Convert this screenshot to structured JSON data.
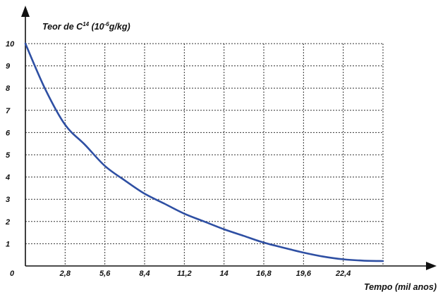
{
  "chart_data": {
    "type": "line",
    "ylabel": {
      "prefix": "Teor de C",
      "sup1": "14",
      "mid": " (10",
      "sup2": "-6",
      "suffix": "g/kg)"
    },
    "xlabel": "Tempo (mil anos)",
    "origin_label": "0",
    "x_ticks": [
      "2,8",
      "5,6",
      "8,4",
      "11,2",
      "14",
      "16,8",
      "19,6",
      "22,4"
    ],
    "y_ticks": [
      "1",
      "2",
      "3",
      "4",
      "5",
      "6",
      "7",
      "8",
      "9",
      "10"
    ],
    "xlim": [
      0,
      25.2
    ],
    "ylim": [
      0,
      10
    ],
    "grid": true,
    "series": [
      {
        "color": "#2e4fa3",
        "x": [
          0,
          1.4,
          2.8,
          4.2,
          5.6,
          7,
          8.4,
          9.8,
          11.2,
          12.6,
          14,
          15.4,
          16.8,
          18.2,
          19.6,
          21,
          22.4,
          23.8,
          25.2
        ],
        "values": [
          10,
          7.95,
          6.35,
          5.45,
          4.5,
          3.85,
          3.25,
          2.8,
          2.35,
          2.0,
          1.65,
          1.35,
          1.05,
          0.82,
          0.6,
          0.42,
          0.3,
          0.24,
          0.22
        ]
      }
    ]
  }
}
